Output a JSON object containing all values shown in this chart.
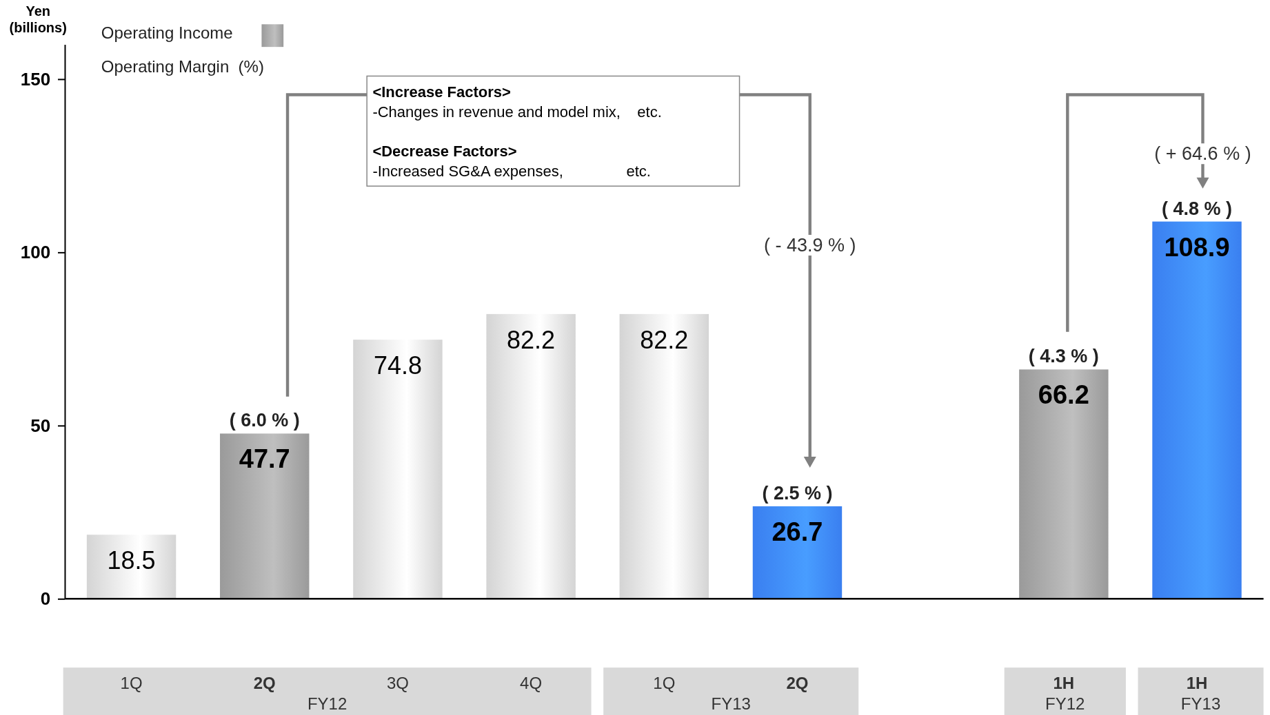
{
  "chart_data": {
    "type": "bar",
    "ylabel": "Yen\n(billions)",
    "categories": [
      "1Q",
      "2Q",
      "3Q",
      "4Q",
      "1Q",
      "2Q",
      null,
      "1H",
      "1H"
    ],
    "series": [
      {
        "name": "Operating Income",
        "color": "#9a9a9a",
        "colors": [
          "#d4d4d4",
          "#9a9a9a",
          "#d4d4d4",
          "#d4d4d4",
          "#d4d4d4",
          "#3a7ff0",
          "#d4d4d4",
          "#9a9a9a",
          "#3a7ff0"
        ],
        "values": [
          18.5,
          47.7,
          74.8,
          82.2,
          82.2,
          26.7,
          null,
          66.2,
          108.9
        ]
      }
    ],
    "ylim": [
      0,
      160
    ],
    "yticks": [
      0,
      50,
      100,
      150
    ],
    "data_labels": true,
    "legend": "top left",
    "annotations": [
      "( 6.0 % )",
      "( 2.5 % )",
      "( 4.3 % )",
      "( 4.8 % )",
      "( - 43.9 % )",
      "( + 64.6 % )",
      "<Increase Factors>",
      "-Changes in revenue and model mix,    etc.",
      "<Decrease Factors>",
      "-Increased SG&A expenses,               etc.",
      "Operating Margin  (%)",
      "FY12",
      "FY13",
      "FY12",
      "FY13"
    ]
  }
}
